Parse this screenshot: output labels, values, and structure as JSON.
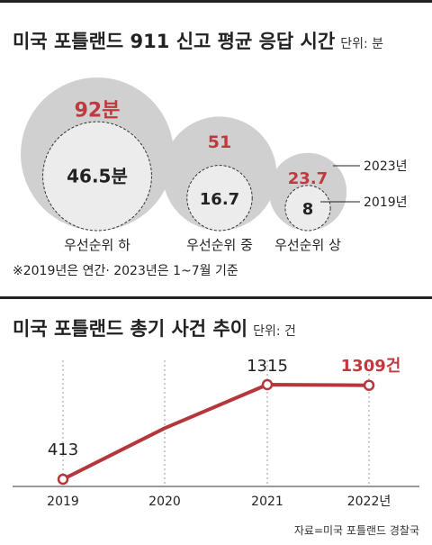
{
  "section1": {
    "title": "미국 포틀랜드 911 신고 평균 응답 시간",
    "unit": "단위: 분",
    "note": "※2019년은 연간· 2023년은 1~7월 기준"
  },
  "section2": {
    "title": "미국 포틀랜드 총기 사건 추이",
    "unit": "단위: 건"
  },
  "source": "자료=미국 포틀랜드 경찰국",
  "colors": {
    "accent": "#c0393e",
    "outer": "#d0d0d0",
    "inner": "#ececec",
    "line": "#b5373c"
  },
  "chart_data": [
    {
      "type": "bubble",
      "title": "미국 포틀랜드 911 신고 평균 응답 시간",
      "unit": "단위: 분",
      "categories": [
        "우선순위 하",
        "우선순위 중",
        "우선순위 상"
      ],
      "series": [
        {
          "name": "2023년",
          "values": [
            92,
            51,
            23.7
          ],
          "labels": [
            "92분",
            "51",
            "23.7"
          ]
        },
        {
          "name": "2019년",
          "values": [
            46.5,
            16.7,
            8
          ],
          "labels": [
            "46.5분",
            "16.7",
            "8"
          ]
        }
      ]
    },
    {
      "type": "line",
      "title": "미국 포틀랜드 총기 사건 추이",
      "unit": "단위: 건",
      "x": [
        "2019",
        "2020",
        "2021",
        "2022년"
      ],
      "values": [
        413,
        null,
        1315,
        1309
      ],
      "value_labels": [
        "413",
        "",
        "1315",
        "1309건"
      ],
      "estimated_2020": 900
    }
  ]
}
